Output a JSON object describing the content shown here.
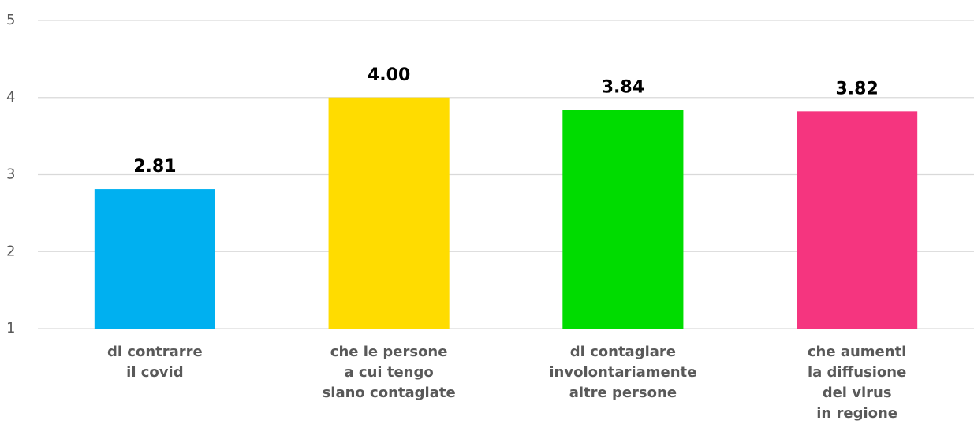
{
  "chart_data": {
    "type": "bar",
    "categories": [
      [
        "di contrarre",
        "il covid"
      ],
      [
        "che le persone",
        "a cui tengo",
        "siano contagiate"
      ],
      [
        "di contagiare",
        "involontariamente",
        "altre persone"
      ],
      [
        "che aumenti",
        "la diffusione",
        "del virus",
        "in regione"
      ]
    ],
    "values": [
      2.81,
      4,
      3.84,
      3.82
    ],
    "value_labels": [
      "2.81",
      "4.00",
      "3.84",
      "3.82"
    ],
    "colors": [
      "#00b0f0",
      "#ffdc00",
      "#00dc00",
      "#f5357f"
    ],
    "ylim": [
      1,
      5
    ],
    "yticks": [
      1,
      2,
      3,
      4,
      5
    ],
    "grid": true
  }
}
